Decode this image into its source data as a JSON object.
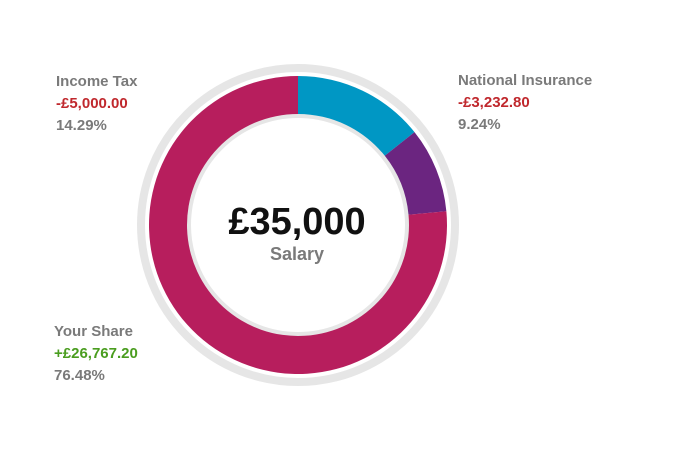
{
  "chart_data": {
    "type": "pie",
    "center_value": "£35,000",
    "center_caption": "Salary",
    "slices": [
      {
        "name": "National Insurance",
        "amount": "-£3,232.80",
        "percent_label": "9.24%",
        "value": 9.24,
        "color": "#6b2580",
        "sign": "neg"
      },
      {
        "name": "Income Tax",
        "amount": "-£5,000.00",
        "percent_label": "14.29%",
        "value": 14.29,
        "color": "#0097c4",
        "sign": "neg"
      },
      {
        "name": "Your Share",
        "amount": "+£26,767.20",
        "percent_label": "76.48%",
        "value": 76.48,
        "color": "#b71e5d",
        "sign": "pos"
      }
    ],
    "ring_color": "#e6e6e6",
    "segment_order_clockwise_from_top": [
      "Income Tax",
      "National Insurance",
      "Your Share"
    ]
  },
  "labels": {
    "income_tax": {
      "name": "Income Tax",
      "amount": "-£5,000.00",
      "percent": "14.29%"
    },
    "national_insurance": {
      "name": "National Insurance",
      "amount": "-£3,232.80",
      "percent": "9.24%"
    },
    "your_share": {
      "name": "Your Share",
      "amount": "+£26,767.20",
      "percent": "76.48%"
    }
  },
  "center": {
    "amount": "£35,000",
    "caption": "Salary"
  }
}
